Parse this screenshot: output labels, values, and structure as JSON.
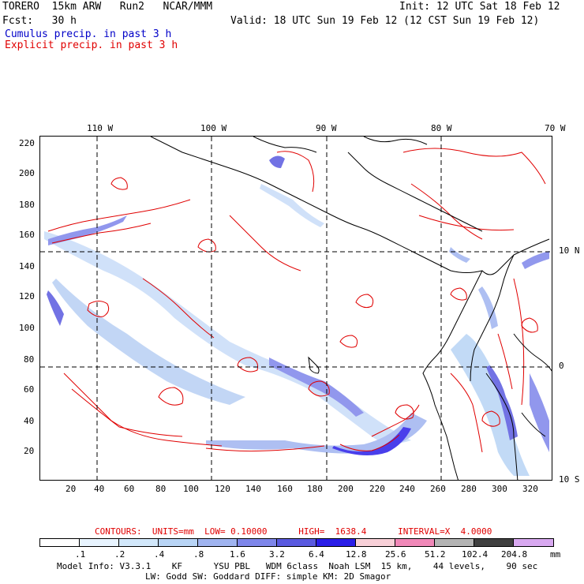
{
  "header": {
    "model": "TORERO  15km ARW   Run2   NCAR/MMM",
    "fcst": "Fcst:   30 h",
    "init": "Init: 12 UTC Sat 18 Feb 12",
    "valid": "Valid: 18 UTC Sun 19 Feb 12 (12 CST Sun 19 Feb 12)",
    "legend_cumulus": "Cumulus precip. in past 3 h",
    "legend_explicit": "Explicit precip. in past 3 h"
  },
  "map": {
    "lon_labels": [
      "110 W",
      "100 W",
      "90 W",
      "80 W",
      "70 W"
    ],
    "lat_labels": [
      "10 N",
      "0",
      "10 S"
    ],
    "y_ticks": [
      "220",
      "200",
      "180",
      "160",
      "140",
      "120",
      "100",
      "80",
      "60",
      "40",
      "20"
    ],
    "x_ticks": [
      "20",
      "40",
      "60",
      "80",
      "100",
      "120",
      "140",
      "160",
      "180",
      "200",
      "220",
      "240",
      "260",
      "280",
      "300",
      "320"
    ]
  },
  "contours_line": "CONTOURS:  UNITS=mm  LOW= 0.10000      HIGH=  1638.4      INTERVAL=X  4.0000",
  "colorbar": {
    "unit": "mm",
    "labels": [
      ".1",
      ".2",
      ".4",
      ".8",
      "1.6",
      "3.2",
      "6.4",
      "12.8",
      "25.6",
      "51.2",
      "102.4",
      "204.8"
    ],
    "colors": [
      "#ffffff",
      "#e8f4ff",
      "#d2e8fb",
      "#b8d4f5",
      "#a0b4f0",
      "#7e86ea",
      "#5a5ae0",
      "#2a1ee8",
      "#f8d0d8",
      "#f088b8",
      "#b4b4b4",
      "#404040",
      "#d8a8f0"
    ]
  },
  "footer": {
    "line1": "Model Info: V3.3.1    KF      YSU PBL   WDM 6class  Noah LSM  15 km,    44 levels,    90 sec",
    "line2": "LW: Godd SW: Goddard DIFF: simple KM: 2D Smagor"
  }
}
